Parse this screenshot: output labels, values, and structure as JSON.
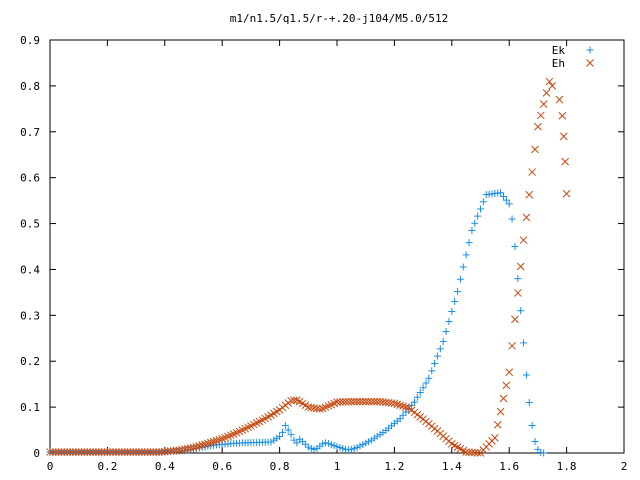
{
  "chart_data": {
    "type": "scatter",
    "title": "m1/n1.5/q1.5/r-+.20-j104/M5.0/512",
    "xlabel": "",
    "ylabel": "",
    "xlim": [
      0,
      2
    ],
    "ylim": [
      0,
      0.9
    ],
    "x_ticks": [
      "0",
      "0.2",
      "0.4",
      "0.6",
      "0.8",
      "1",
      "1.2",
      "1.4",
      "1.6",
      "1.8",
      "2"
    ],
    "y_ticks": [
      "0",
      "0.1",
      "0.2",
      "0.3",
      "0.4",
      "0.5",
      "0.6",
      "0.7",
      "0.8",
      "0.9"
    ],
    "grid": false,
    "legend_position": "top-right",
    "x_start": 0,
    "x_step": 0.01,
    "series": [
      {
        "name": "Ek",
        "marker": "plus",
        "color": "#1a8fe8",
        "values": [
          0.002,
          0.002,
          0.002,
          0.002,
          0.002,
          0.002,
          0.002,
          0.002,
          0.002,
          0.002,
          0.002,
          0.002,
          0.002,
          0.002,
          0.002,
          0.002,
          0.002,
          0.002,
          0.002,
          0.002,
          0.002,
          0.002,
          0.002,
          0.002,
          0.002,
          0.002,
          0.002,
          0.002,
          0.002,
          0.002,
          0.002,
          0.002,
          0.002,
          0.002,
          0.002,
          0.002,
          0.002,
          0.002,
          0.002,
          0.002,
          0.003,
          0.0032,
          0.0035,
          0.0038,
          0.0041,
          0.0044,
          0.0047,
          0.005,
          0.0062,
          0.0074,
          0.0086,
          0.0098,
          0.011,
          0.0122,
          0.0134,
          0.0146,
          0.0158,
          0.017,
          0.0176,
          0.0182,
          0.0188,
          0.0194,
          0.02,
          0.0204,
          0.0208,
          0.0212,
          0.0216,
          0.022,
          0.0222,
          0.0224,
          0.0226,
          0.0228,
          0.023,
          0.0232,
          0.0234,
          0.0236,
          0.0238,
          0.024,
          0.028,
          0.032,
          0.036,
          0.045,
          0.06,
          0.05,
          0.04,
          0.028,
          0.022,
          0.03,
          0.025,
          0.019,
          0.013,
          0.01,
          0.008,
          0.01,
          0.015,
          0.02,
          0.022,
          0.021,
          0.018,
          0.016,
          0.014,
          0.012,
          0.01,
          0.008,
          0.007,
          0.008,
          0.01,
          0.012,
          0.0152,
          0.0184,
          0.0216,
          0.0248,
          0.028,
          0.0322,
          0.0364,
          0.0406,
          0.0448,
          0.049,
          0.0542,
          0.0594,
          0.0646,
          0.0698,
          0.075,
          0.0822,
          0.0894,
          0.0966,
          0.1038,
          0.111,
          0.1214,
          0.1318,
          0.1422,
          0.1526,
          0.163,
          0.179,
          0.195,
          0.211,
          0.227,
          0.243,
          0.2648,
          0.2866,
          0.3084,
          0.3302,
          0.352,
          0.3786,
          0.4052,
          0.4318,
          0.4584,
          0.485,
          0.5006,
          0.5162,
          0.5318,
          0.5474,
          0.563,
          0.5638,
          0.5646,
          0.5654,
          0.5662,
          0.567,
          0.559,
          0.551,
          0.543,
          0.51,
          0.45,
          0.38,
          0.31,
          0.24,
          0.17,
          0.11,
          0.06,
          0.025,
          0.008,
          0.001,
          0.0
        ]
      },
      {
        "name": "Eh",
        "marker": "cross",
        "color": "#c84a10",
        "values": [
          0.002,
          0.002,
          0.002,
          0.002,
          0.002,
          0.002,
          0.002,
          0.002,
          0.002,
          0.002,
          0.002,
          0.002,
          0.002,
          0.002,
          0.002,
          0.002,
          0.002,
          0.002,
          0.002,
          0.002,
          0.002,
          0.002,
          0.002,
          0.002,
          0.002,
          0.002,
          0.002,
          0.002,
          0.002,
          0.002,
          0.002,
          0.002,
          0.002,
          0.002,
          0.002,
          0.002,
          0.002,
          0.002,
          0.002,
          0.002,
          0.003,
          0.0036,
          0.0042,
          0.0048,
          0.0054,
          0.006,
          0.0072,
          0.0084,
          0.0096,
          0.0108,
          0.012,
          0.0138,
          0.0156,
          0.0174,
          0.0192,
          0.021,
          0.023,
          0.025,
          0.027,
          0.029,
          0.031,
          0.0336,
          0.0362,
          0.0388,
          0.0414,
          0.044,
          0.047,
          0.05,
          0.053,
          0.056,
          0.059,
          0.0622,
          0.0654,
          0.0686,
          0.0718,
          0.075,
          0.0788,
          0.0826,
          0.0864,
          0.0902,
          0.094,
          0.099,
          0.104,
          0.109,
          0.114,
          0.115,
          0.115,
          0.112,
          0.108,
          0.104,
          0.1,
          0.099,
          0.098,
          0.097,
          0.096,
          0.097,
          0.0998,
          0.1026,
          0.1054,
          0.1082,
          0.111,
          0.1112,
          0.1114,
          0.1116,
          0.1118,
          0.112,
          0.112,
          0.112,
          0.112,
          0.112,
          0.112,
          0.112,
          0.112,
          0.112,
          0.112,
          0.112,
          0.1112,
          0.1104,
          0.1096,
          0.1088,
          0.108,
          0.106,
          0.104,
          0.102,
          0.1,
          0.098,
          0.0932,
          0.0884,
          0.0836,
          0.0788,
          0.074,
          0.0688,
          0.0636,
          0.0584,
          0.0532,
          0.048,
          0.0424,
          0.0368,
          0.0312,
          0.0256,
          0.02,
          0.0164,
          0.0128,
          0.0092,
          0.0056,
          0.002,
          0.0016,
          0.0012,
          0.0008,
          0.0004,
          0.0,
          0.0066,
          0.0132,
          0.0198,
          0.0264,
          0.033,
          0.0616,
          0.0902,
          0.1188,
          0.1474,
          0.176,
          0.2336,
          0.2912,
          0.3488,
          0.4064,
          0.464,
          0.5134,
          0.5628,
          0.6122,
          0.6616,
          0.711,
          0.7356,
          0.7602,
          0.7848,
          0.8094,
          0.8
        ],
        "tail": [
          {
            "x": 1.775,
            "y": 0.77
          },
          {
            "x": 1.785,
            "y": 0.735
          },
          {
            "x": 1.79,
            "y": 0.69
          },
          {
            "x": 1.795,
            "y": 0.635
          },
          {
            "x": 1.8,
            "y": 0.565
          }
        ]
      }
    ]
  }
}
